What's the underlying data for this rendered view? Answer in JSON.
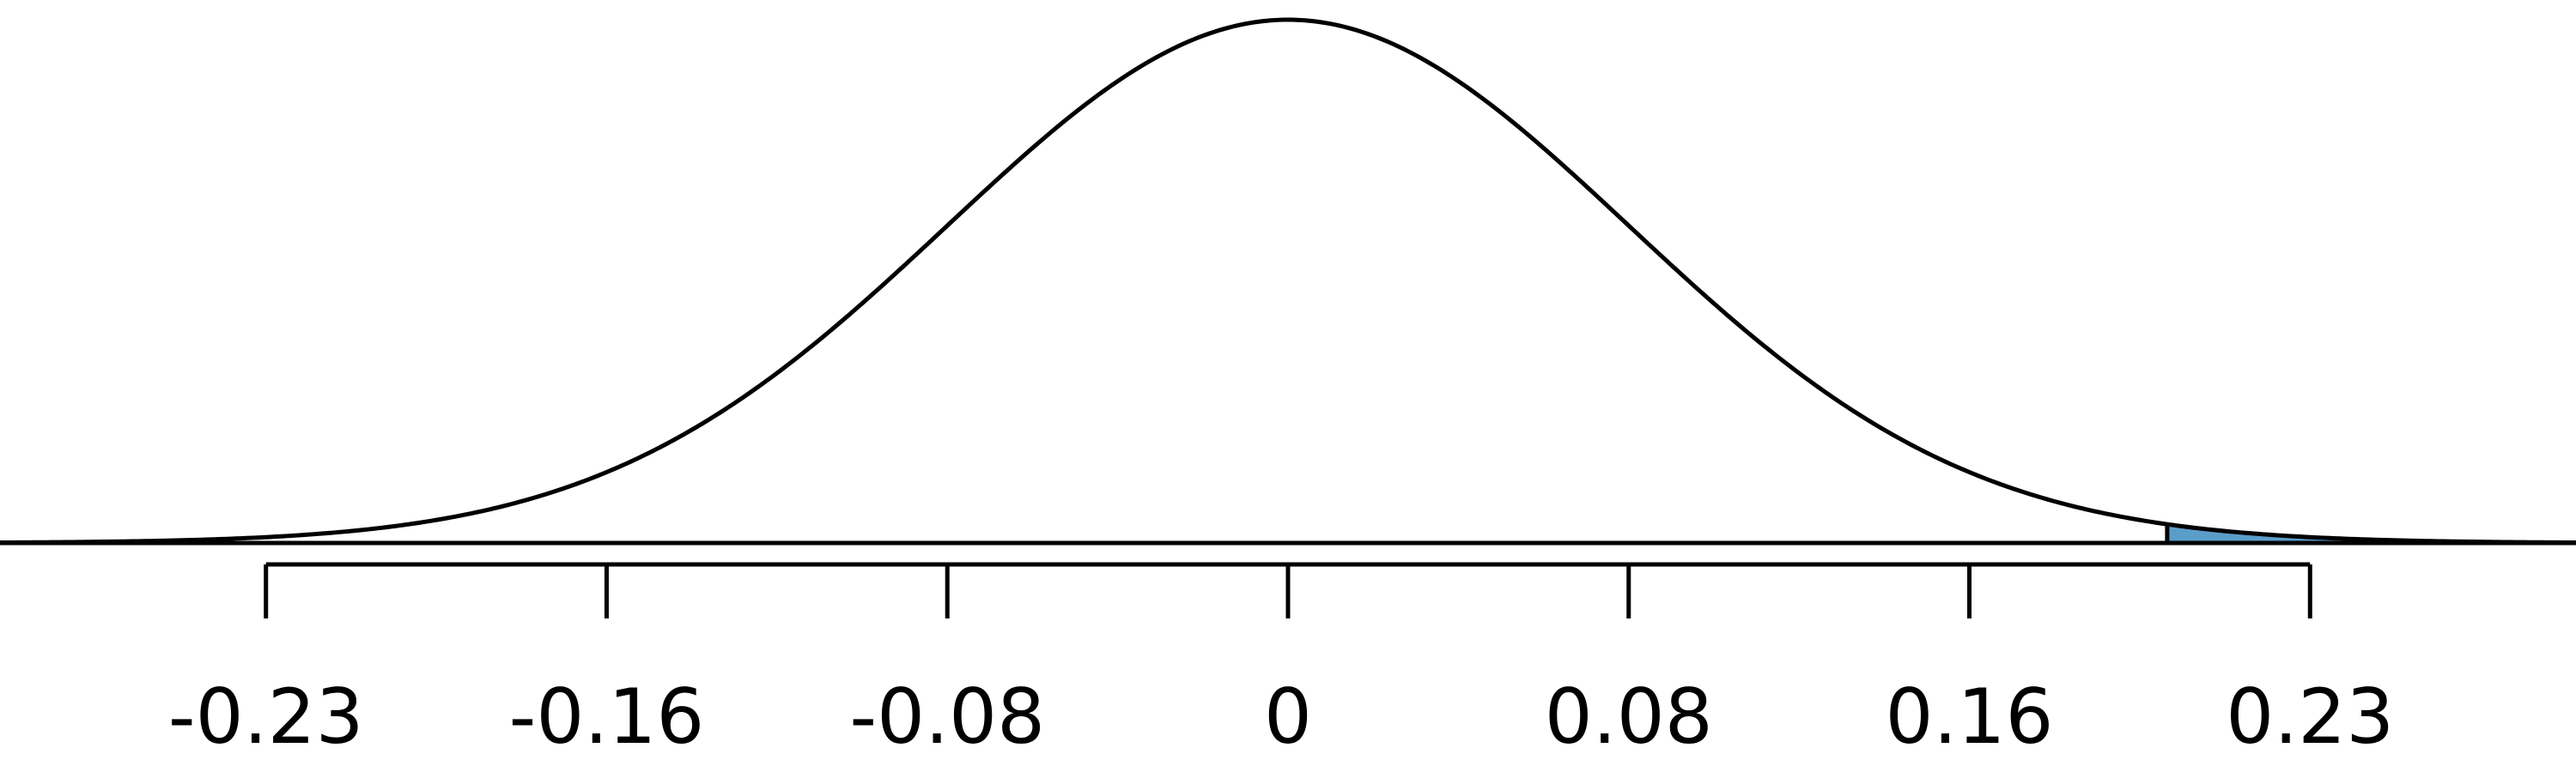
{
  "chart_data": {
    "type": "normal",
    "mean": 0,
    "sd": 0.0775,
    "shade_from": 0.2,
    "shade_color": "#5b9dc9",
    "xlim": [
      -0.293,
      0.293
    ],
    "xticks": [
      {
        "value": -0.2325,
        "label": "-0.23"
      },
      {
        "value": -0.155,
        "label": "-0.16"
      },
      {
        "value": -0.0775,
        "label": "-0.08"
      },
      0,
      {
        "value": 0.0775,
        "label": "0.08"
      },
      {
        "value": 0.155,
        "label": "0.16"
      },
      {
        "value": 0.2325,
        "label": "0.23"
      }
    ]
  }
}
